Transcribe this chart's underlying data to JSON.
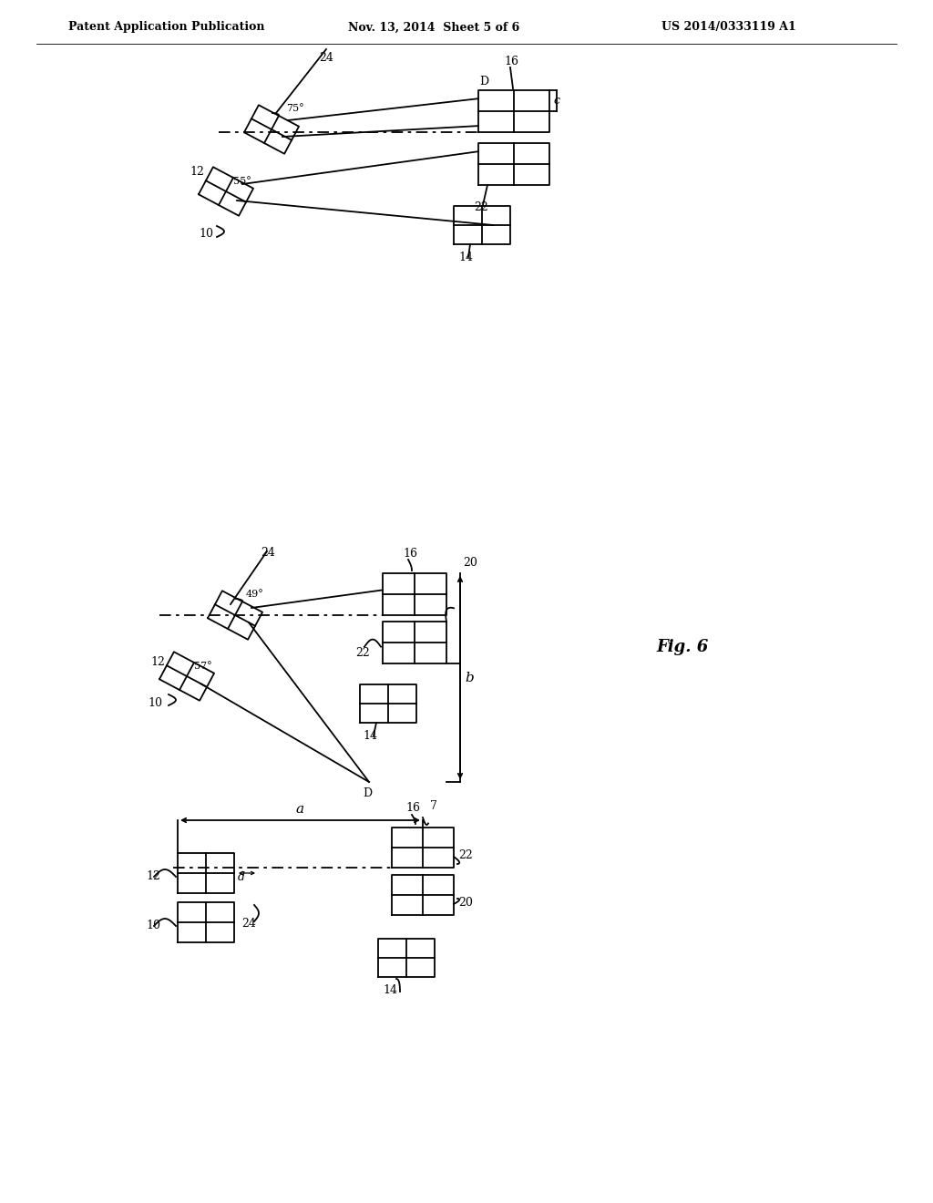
{
  "bg_color": "#ffffff",
  "line_color": "#000000",
  "header_left": "Patent Application Publication",
  "header_center": "Nov. 13, 2014  Sheet 5 of 6",
  "header_right": "US 2014/0333119 A1",
  "lw": 1.3
}
